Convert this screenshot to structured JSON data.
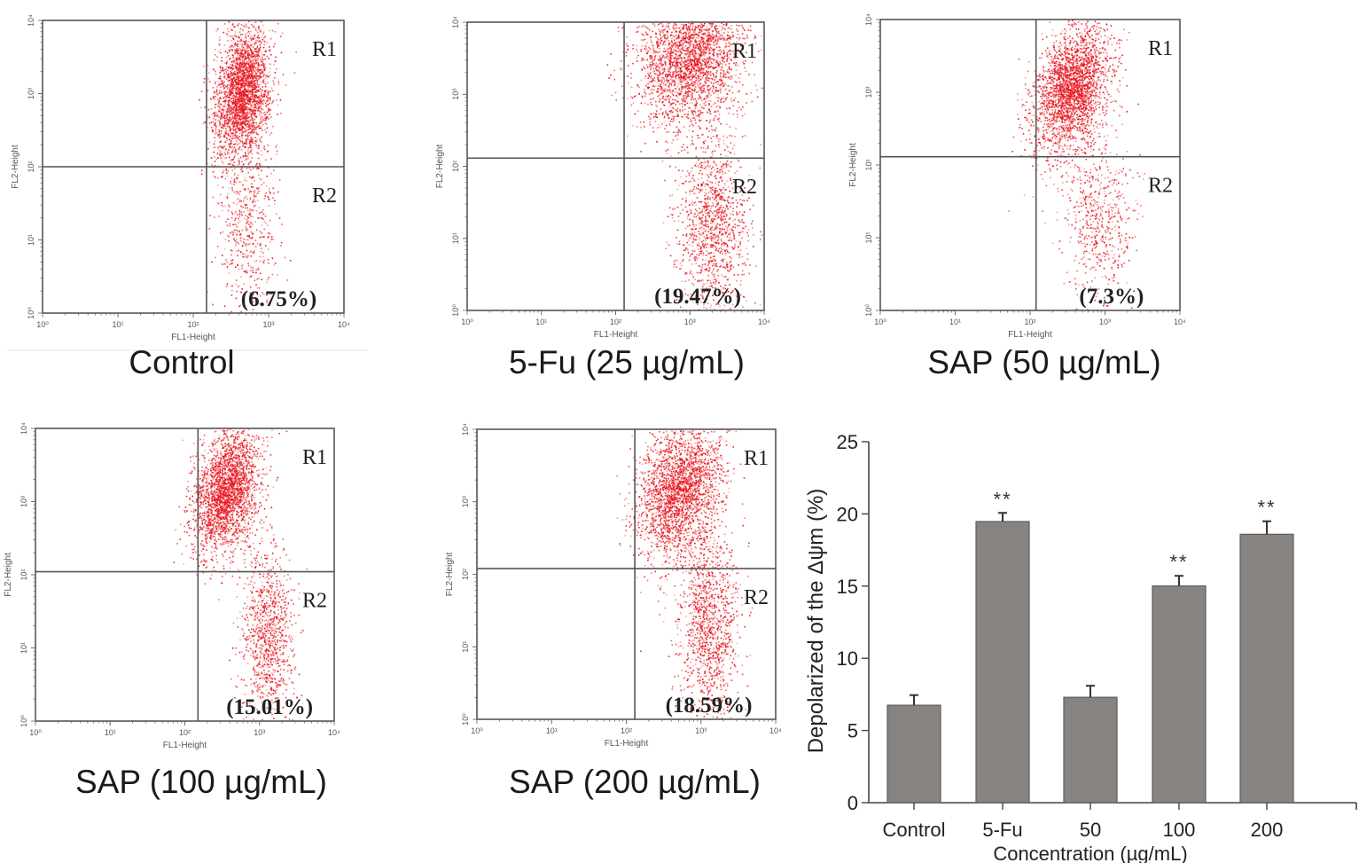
{
  "chart_data": [
    {
      "type": "scatter",
      "panel": "control",
      "caption": "Control",
      "xlabel": "FL1-Height",
      "ylabel": "FL2-Height",
      "x_scale": "log",
      "y_scale": "log",
      "xlim": [
        1,
        10000
      ],
      "ylim": [
        1,
        10000
      ],
      "x_ticks": [
        "10⁰",
        "10¹",
        "10²",
        "10³",
        "10⁴"
      ],
      "y_ticks": [
        "10⁰",
        "10¹",
        "10²",
        "10³",
        "10⁴"
      ],
      "gate": {
        "x": 150,
        "y": 100
      },
      "regions": [
        "R1",
        "R2"
      ],
      "annotation": "(6.75%)",
      "percent_R2": 6.75,
      "point_color": "#e8141c",
      "clusters": [
        {
          "cx_log": 2.65,
          "cy_log": 3.0,
          "sx": 0.18,
          "sy": 0.45,
          "n": 2600,
          "tilt": 0.5
        },
        {
          "cx_log": 2.7,
          "cy_log": 1.2,
          "sx": 0.2,
          "sy": 0.6,
          "n": 500,
          "tilt": 0
        }
      ]
    },
    {
      "type": "scatter",
      "panel": "5-fu",
      "caption": "5-Fu (25 µg/mL)",
      "xlabel": "FL1-Height",
      "ylabel": "FL2-Height",
      "x_scale": "log",
      "y_scale": "log",
      "xlim": [
        1,
        10000
      ],
      "ylim": [
        1,
        10000
      ],
      "x_ticks": [
        "10⁰",
        "10¹",
        "10²",
        "10³",
        "10⁴"
      ],
      "y_ticks": [
        "10⁰",
        "10¹",
        "10²",
        "10³",
        "10⁴"
      ],
      "gate": {
        "x": 130,
        "y": 130
      },
      "regions": [
        "R1",
        "R2"
      ],
      "annotation": "(19.47%)",
      "percent_R2": 19.47,
      "point_color": "#e8141c",
      "clusters": [
        {
          "cx_log": 3.0,
          "cy_log": 3.5,
          "sx": 0.35,
          "sy": 0.45,
          "n": 2600,
          "tilt": 0.2
        },
        {
          "cx_log": 3.3,
          "cy_log": 1.2,
          "sx": 0.25,
          "sy": 0.65,
          "n": 1200,
          "tilt": 0
        }
      ]
    },
    {
      "type": "scatter",
      "panel": "sap-50",
      "caption": "SAP (50 µg/mL)",
      "xlabel": "FL1-Height",
      "ylabel": "FL2-Height",
      "x_scale": "log",
      "y_scale": "log",
      "xlim": [
        1,
        10000
      ],
      "ylim": [
        1,
        10000
      ],
      "x_ticks": [
        "10⁰",
        "10¹",
        "10²",
        "10³",
        "10⁴"
      ],
      "y_ticks": [
        "10⁰",
        "10¹",
        "10²",
        "10³",
        "10⁴"
      ],
      "gate": {
        "x": 120,
        "y": 130
      },
      "regions": [
        "R1",
        "R2"
      ],
      "annotation": "(7.3%)",
      "percent_R2": 7.3,
      "point_color": "#e8141c",
      "clusters": [
        {
          "cx_log": 2.55,
          "cy_log": 3.05,
          "sx": 0.25,
          "sy": 0.4,
          "n": 2600,
          "tilt": 0.55
        },
        {
          "cx_log": 2.9,
          "cy_log": 1.3,
          "sx": 0.25,
          "sy": 0.6,
          "n": 600,
          "tilt": 0
        }
      ]
    },
    {
      "type": "scatter",
      "panel": "sap-100",
      "caption": "SAP (100 µg/mL)",
      "xlabel": "FL1-Height",
      "ylabel": "FL2-Height",
      "x_scale": "log",
      "y_scale": "log",
      "xlim": [
        1,
        10000
      ],
      "ylim": [
        1,
        10000
      ],
      "x_ticks": [
        "10⁰",
        "10¹",
        "10²",
        "10³",
        "10⁴"
      ],
      "y_ticks": [
        "10⁰",
        "10¹",
        "10²",
        "10³",
        "10⁴"
      ],
      "gate": {
        "x": 150,
        "y": 110
      },
      "regions": [
        "R1",
        "R2"
      ],
      "annotation": "(15.01%)",
      "percent_R2": 15.01,
      "point_color": "#e8141c",
      "clusters": [
        {
          "cx_log": 2.55,
          "cy_log": 3.15,
          "sx": 0.22,
          "sy": 0.4,
          "n": 2500,
          "tilt": 0.6
        },
        {
          "cx_log": 3.1,
          "cy_log": 1.2,
          "sx": 0.18,
          "sy": 0.6,
          "n": 1000,
          "tilt": 0
        }
      ]
    },
    {
      "type": "scatter",
      "panel": "sap-200",
      "caption": "SAP (200 µg/mL)",
      "xlabel": "FL1-Height",
      "ylabel": "FL2-Height",
      "x_scale": "log",
      "y_scale": "log",
      "xlim": [
        1,
        10000
      ],
      "ylim": [
        1,
        10000
      ],
      "x_ticks": [
        "10⁰",
        "10¹",
        "10²",
        "10³",
        "10⁴"
      ],
      "y_ticks": [
        "10⁰",
        "10¹",
        "10²",
        "10³",
        "10⁴"
      ],
      "gate": {
        "x": 130,
        "y": 120
      },
      "regions": [
        "R1",
        "R2"
      ],
      "annotation": "(18.59%)",
      "percent_R2": 18.59,
      "point_color": "#e8141c",
      "clusters": [
        {
          "cx_log": 2.7,
          "cy_log": 3.15,
          "sx": 0.28,
          "sy": 0.45,
          "n": 2500,
          "tilt": 0.4
        },
        {
          "cx_log": 3.1,
          "cy_log": 1.3,
          "sx": 0.2,
          "sy": 0.65,
          "n": 1200,
          "tilt": 0
        }
      ]
    },
    {
      "type": "bar",
      "panel": "summary",
      "title": "",
      "categories": [
        "Control",
        "5-Fu",
        "50",
        "100",
        "200"
      ],
      "values": [
        6.75,
        19.47,
        7.3,
        15.01,
        18.59
      ],
      "errors": [
        0.7,
        0.6,
        0.8,
        0.7,
        0.9
      ],
      "significance": [
        "",
        "**",
        "",
        "**",
        "**"
      ],
      "xlabel": "Concentration (µg/mL)",
      "ylabel": "Depolarized of the Δψm (%)",
      "ylim": [
        0,
        25
      ],
      "y_ticks": [
        0,
        5,
        10,
        15,
        20,
        25
      ],
      "bar_color": "#868381",
      "grid": false
    }
  ]
}
